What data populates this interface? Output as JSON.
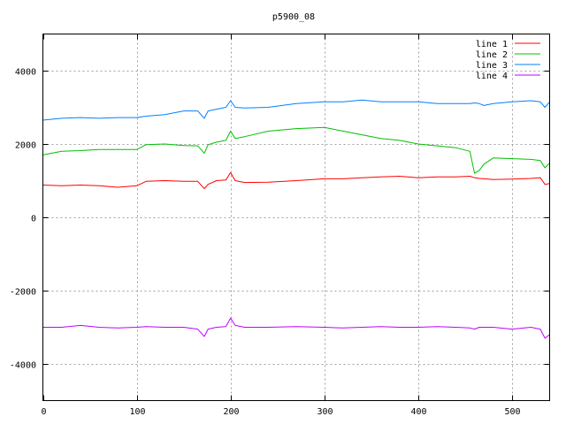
{
  "chart_data": {
    "type": "line",
    "title": "p5900_08",
    "xlabel": "",
    "ylabel": "",
    "xlim": [
      0,
      540
    ],
    "ylim": [
      -5000,
      5000
    ],
    "xticks": [
      0,
      100,
      200,
      300,
      400,
      500
    ],
    "yticks": [
      -4000,
      -2000,
      0,
      2000,
      4000
    ],
    "xtick_labels": [
      "0",
      "100",
      "200",
      "300",
      "400",
      "500"
    ],
    "ytick_labels": [
      "-4000",
      "-2000",
      "0",
      "2000",
      "4000"
    ],
    "grid": true,
    "legend_position": "top-right",
    "x": [
      0,
      20,
      40,
      60,
      80,
      100,
      110,
      130,
      150,
      165,
      172,
      176,
      185,
      195,
      200,
      205,
      215,
      240,
      270,
      300,
      320,
      340,
      360,
      380,
      400,
      420,
      440,
      455,
      460,
      465,
      470,
      480,
      500,
      520,
      530,
      535,
      540
    ],
    "series": [
      {
        "name": "line 1",
        "color": "#ff0000",
        "values": [
          880,
          860,
          880,
          860,
          820,
          860,
          980,
          1000,
          980,
          980,
          780,
          900,
          1000,
          1020,
          1220,
          1000,
          950,
          960,
          1000,
          1050,
          1050,
          1080,
          1100,
          1120,
          1080,
          1100,
          1100,
          1120,
          1080,
          1060,
          1050,
          1030,
          1040,
          1060,
          1080,
          900,
          920
        ]
      },
      {
        "name": "line 2",
        "color": "#00c000",
        "values": [
          1700,
          1800,
          1820,
          1850,
          1850,
          1850,
          1980,
          2000,
          1960,
          1950,
          1750,
          1980,
          2050,
          2100,
          2350,
          2150,
          2200,
          2350,
          2420,
          2450,
          2350,
          2250,
          2150,
          2100,
          2000,
          1950,
          1900,
          1800,
          1200,
          1280,
          1450,
          1620,
          1600,
          1580,
          1550,
          1350,
          1480
        ]
      },
      {
        "name": "line 3",
        "color": "#0080ff",
        "values": [
          2650,
          2700,
          2720,
          2700,
          2720,
          2720,
          2760,
          2800,
          2900,
          2900,
          2700,
          2900,
          2950,
          3000,
          3180,
          3000,
          2980,
          3000,
          3100,
          3150,
          3150,
          3200,
          3150,
          3150,
          3150,
          3100,
          3100,
          3100,
          3120,
          3100,
          3050,
          3100,
          3150,
          3180,
          3150,
          3000,
          3150
        ]
      },
      {
        "name": "line 4",
        "color": "#c000ff",
        "values": [
          -3000,
          -3000,
          -2950,
          -3000,
          -3020,
          -3000,
          -2980,
          -3000,
          -3000,
          -3050,
          -3250,
          -3050,
          -3000,
          -2980,
          -2750,
          -2950,
          -3000,
          -3000,
          -2980,
          -3000,
          -3020,
          -3000,
          -2980,
          -3000,
          -3000,
          -2980,
          -3000,
          -3020,
          -3050,
          -3000,
          -3000,
          -3000,
          -3050,
          -3000,
          -3050,
          -3300,
          -3200
        ]
      }
    ]
  }
}
